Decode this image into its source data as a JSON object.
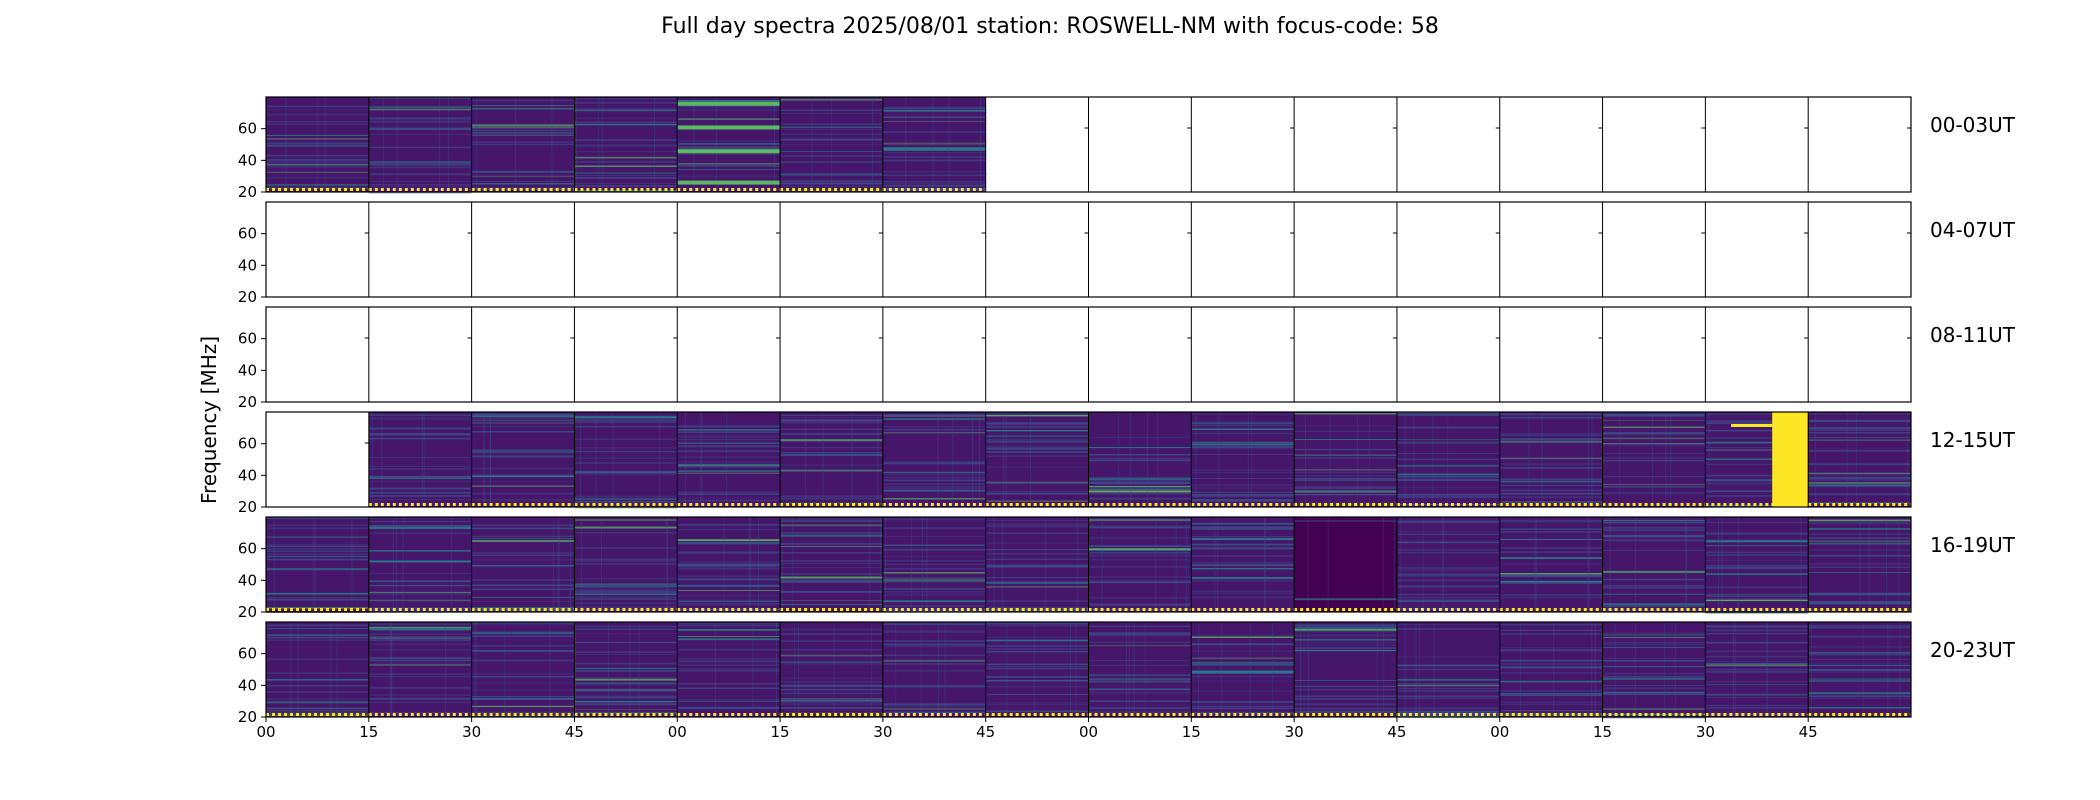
{
  "chart_data": {
    "type": "heatmap",
    "title": "Full day spectra 2025/08/01 station: ROSWELL-NM with focus-code: 58",
    "ylabel": "Frequency [MHz]",
    "xlabel": "",
    "ylim": [
      20,
      80
    ],
    "y_ticks": [
      "20",
      "40",
      "60"
    ],
    "x_ticks": [
      "00",
      "15",
      "30",
      "45",
      "00",
      "15",
      "30",
      "45",
      "00",
      "15",
      "30",
      "45",
      "00",
      "15",
      "30",
      "45"
    ],
    "panels_per_row": 16,
    "minutes_per_panel": 15,
    "rows": [
      {
        "label": "00-03UT",
        "panels": [
          "data",
          "data",
          "data",
          "data",
          "bright",
          "data",
          "data",
          "empty",
          "empty",
          "empty",
          "empty",
          "empty",
          "empty",
          "empty",
          "empty",
          "empty"
        ]
      },
      {
        "label": "04-07UT",
        "panels": [
          "empty",
          "empty",
          "empty",
          "empty",
          "empty",
          "empty",
          "empty",
          "empty",
          "empty",
          "empty",
          "empty",
          "empty",
          "empty",
          "empty",
          "empty",
          "empty"
        ]
      },
      {
        "label": "08-11UT",
        "panels": [
          "empty",
          "empty",
          "empty",
          "empty",
          "empty",
          "empty",
          "empty",
          "empty",
          "empty",
          "empty",
          "empty",
          "empty",
          "empty",
          "empty",
          "empty",
          "empty"
        ]
      },
      {
        "label": "12-15UT",
        "panels": [
          "empty",
          "data",
          "data",
          "data",
          "data",
          "data",
          "data",
          "data",
          "data",
          "data",
          "data",
          "data",
          "data",
          "data",
          "saturated",
          "data"
        ]
      },
      {
        "label": "16-19UT",
        "panels": [
          "data",
          "data",
          "data",
          "data",
          "data",
          "data",
          "data",
          "data",
          "data",
          "data",
          "dark",
          "data",
          "data",
          "data",
          "data",
          "data"
        ]
      },
      {
        "label": "20-23UT",
        "panels": [
          "data",
          "data",
          "data",
          "data",
          "data",
          "data",
          "data",
          "data",
          "data",
          "data",
          "data",
          "data",
          "data",
          "data",
          "data",
          "data"
        ]
      }
    ],
    "colormap": [
      "#440154",
      "#3b528b",
      "#21918c",
      "#5ec962",
      "#fde725"
    ]
  }
}
